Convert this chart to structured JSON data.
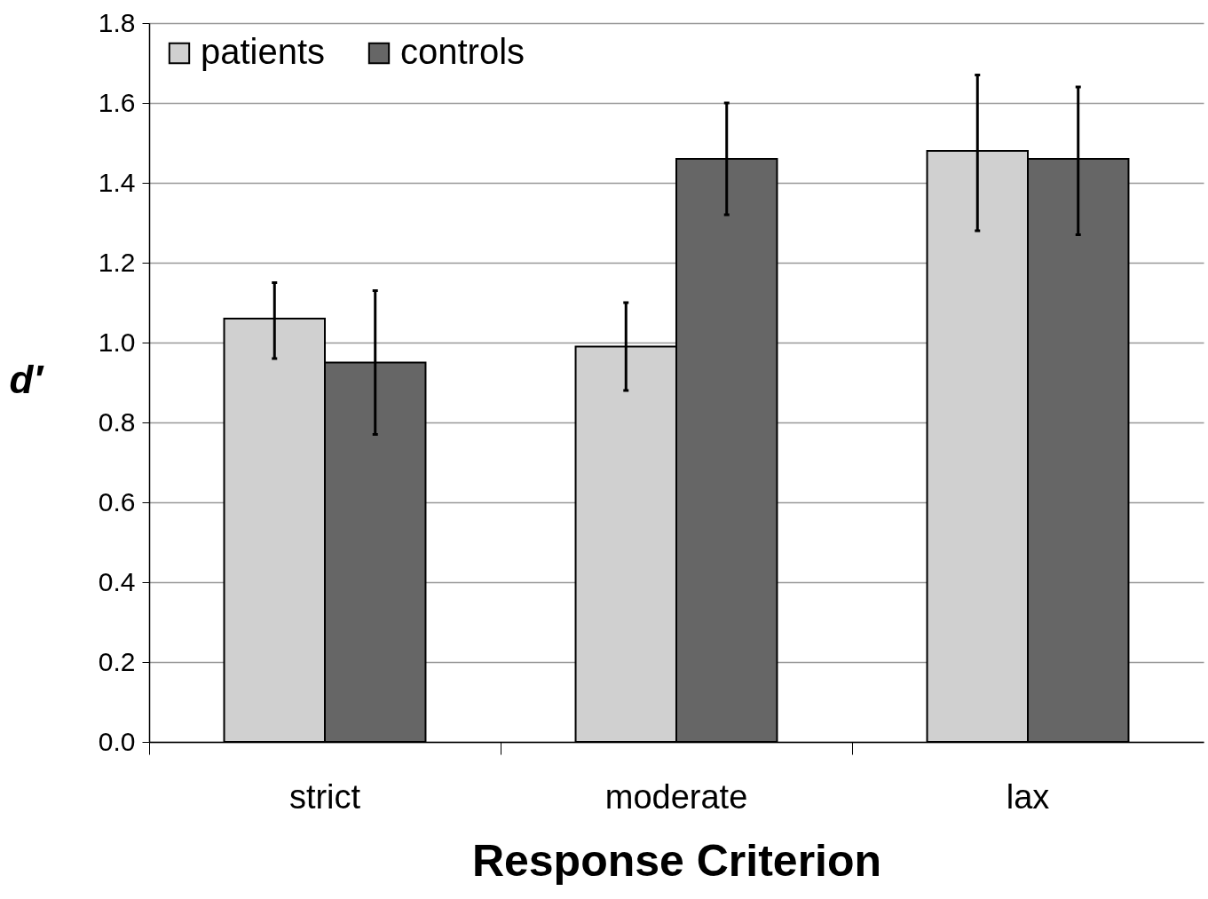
{
  "chart_data": {
    "type": "bar",
    "xlabel": "Response Criterion",
    "ylabel": "d′",
    "categories": [
      "strict",
      "moderate",
      "lax"
    ],
    "series": [
      {
        "name": "patients",
        "color": "#d0d0d0",
        "values": [
          1.06,
          0.99,
          1.48
        ],
        "errors": [
          [
            0.96,
            1.15
          ],
          [
            0.88,
            1.1
          ],
          [
            1.28,
            1.67
          ]
        ]
      },
      {
        "name": "controls",
        "color": "#666666",
        "values": [
          0.95,
          1.46,
          1.46
        ],
        "errors": [
          [
            0.77,
            1.13
          ],
          [
            1.32,
            1.6
          ],
          [
            1.27,
            1.64
          ]
        ]
      }
    ],
    "ylim": [
      0,
      1.8
    ],
    "yticks": [
      {
        "value": 0,
        "label": "0.0"
      },
      {
        "value": 0.2,
        "label": "0.2"
      },
      {
        "value": 0.4,
        "label": "0.4"
      },
      {
        "value": 0.6,
        "label": "0.6"
      },
      {
        "value": 0.8,
        "label": "0.8"
      },
      {
        "value": 1,
        "label": "1.0"
      },
      {
        "value": 1.2,
        "label": "1.2"
      },
      {
        "value": 1.4,
        "label": "1.4"
      },
      {
        "value": 1.6,
        "label": "1.6"
      },
      {
        "value": 1.8,
        "label": "1.8"
      }
    ],
    "grid": "y",
    "legend": "top left"
  }
}
